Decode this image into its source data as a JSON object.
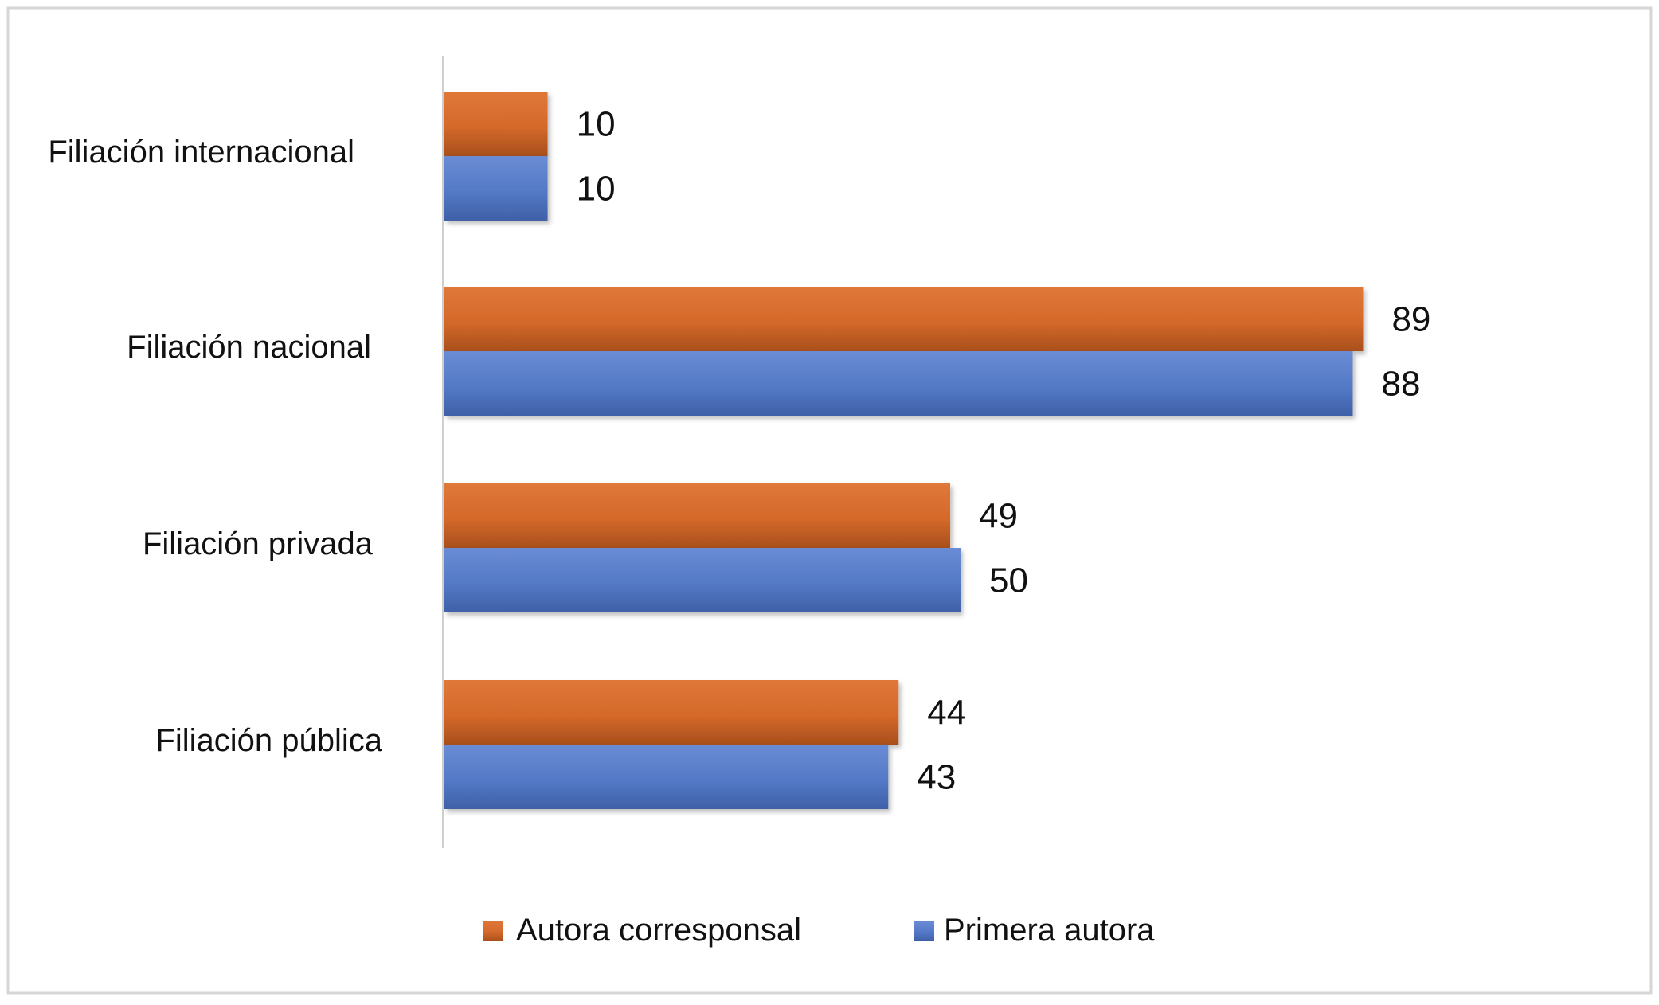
{
  "chart_data": {
    "type": "bar",
    "orientation": "horizontal",
    "categories": [
      "Filiación internacional",
      "Filiación nacional",
      "Filiación privada",
      "Filiación pública"
    ],
    "series": [
      {
        "name": "Autora corresponsal",
        "color": "#d4692a",
        "values": [
          10,
          89,
          49,
          44
        ]
      },
      {
        "name": "Primera autora",
        "color": "#5479c6",
        "values": [
          10,
          88,
          50,
          43
        ]
      }
    ],
    "xlim": [
      0,
      100
    ],
    "grid": false,
    "data_labels": true,
    "legend_position": "bottom"
  }
}
